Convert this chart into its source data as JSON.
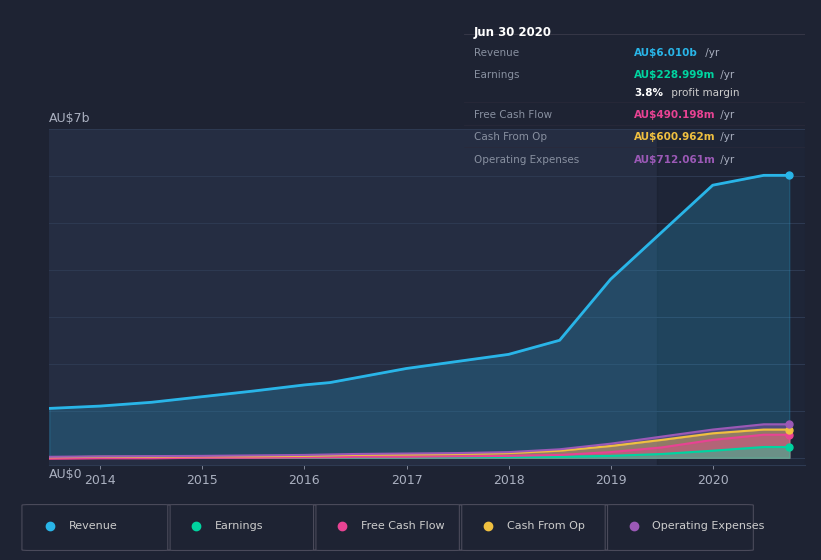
{
  "bg_color": "#1e2333",
  "plot_bg_color": "#252d42",
  "grid_color": "#2e3a52",
  "years": [
    2013.5,
    2014.0,
    2014.5,
    2015.0,
    2015.5,
    2016.0,
    2016.25,
    2016.5,
    2017.0,
    2017.5,
    2018.0,
    2018.5,
    2019.0,
    2019.5,
    2020.0,
    2020.5,
    2020.75
  ],
  "revenue": [
    1.05,
    1.1,
    1.18,
    1.3,
    1.42,
    1.55,
    1.6,
    1.7,
    1.9,
    2.05,
    2.2,
    2.5,
    3.8,
    4.8,
    5.8,
    6.01,
    6.01
  ],
  "earnings": [
    0.01,
    0.015,
    0.015,
    0.015,
    0.015,
    0.015,
    0.015,
    0.015,
    0.015,
    0.015,
    0.015,
    0.02,
    0.04,
    0.08,
    0.15,
    0.229,
    0.229
  ],
  "free_cash_flow": [
    -0.02,
    -0.01,
    -0.01,
    0.0,
    0.0,
    0.01,
    0.01,
    0.02,
    0.02,
    0.03,
    0.04,
    0.06,
    0.12,
    0.22,
    0.38,
    0.49,
    0.49
  ],
  "cash_from_op": [
    0.01,
    0.02,
    0.02,
    0.03,
    0.03,
    0.04,
    0.05,
    0.06,
    0.07,
    0.08,
    0.1,
    0.15,
    0.25,
    0.38,
    0.52,
    0.6,
    0.6
  ],
  "operating_expenses": [
    0.02,
    0.03,
    0.035,
    0.04,
    0.05,
    0.06,
    0.07,
    0.08,
    0.09,
    0.1,
    0.12,
    0.18,
    0.3,
    0.45,
    0.6,
    0.712,
    0.712
  ],
  "revenue_color": "#29b5e8",
  "earnings_color": "#00d4a0",
  "free_cash_flow_color": "#e84393",
  "cash_from_op_color": "#f0c040",
  "operating_expenses_color": "#9b59b6",
  "xlim": [
    2013.5,
    2020.9
  ],
  "ylim": [
    -0.15,
    7.0
  ],
  "xticks": [
    2014,
    2015,
    2016,
    2017,
    2018,
    2019,
    2020
  ],
  "ylabel_top": "AU$7b",
  "ylabel_bottom": "AU$0",
  "highlight_x_start": 2019.45,
  "highlight_x_end": 2020.9,
  "info_box": {
    "title": "Jun 30 2020",
    "rows": [
      {
        "label": "Revenue",
        "value": "AU$6.010b /yr",
        "value_color": "#29b5e8",
        "bold_part": ""
      },
      {
        "label": "Earnings",
        "value": "AU$228.999m /yr",
        "value_color": "#00d4a0",
        "bold_part": ""
      },
      {
        "label": "",
        "value": "3.8% profit margin",
        "value_color": "#ffffff",
        "bold_part": "3.8%"
      },
      {
        "label": "Free Cash Flow",
        "value": "AU$490.198m /yr",
        "value_color": "#e84393",
        "bold_part": ""
      },
      {
        "label": "Cash From Op",
        "value": "AU$600.962m /yr",
        "value_color": "#f0c040",
        "bold_part": ""
      },
      {
        "label": "Operating Expenses",
        "value": "AU$712.061m /yr",
        "value_color": "#9b59b6",
        "bold_part": ""
      }
    ]
  },
  "legend_items": [
    {
      "label": "Revenue",
      "color": "#29b5e8"
    },
    {
      "label": "Earnings",
      "color": "#00d4a0"
    },
    {
      "label": "Free Cash Flow",
      "color": "#e84393"
    },
    {
      "label": "Cash From Op",
      "color": "#f0c040"
    },
    {
      "label": "Operating Expenses",
      "color": "#9b59b6"
    }
  ]
}
